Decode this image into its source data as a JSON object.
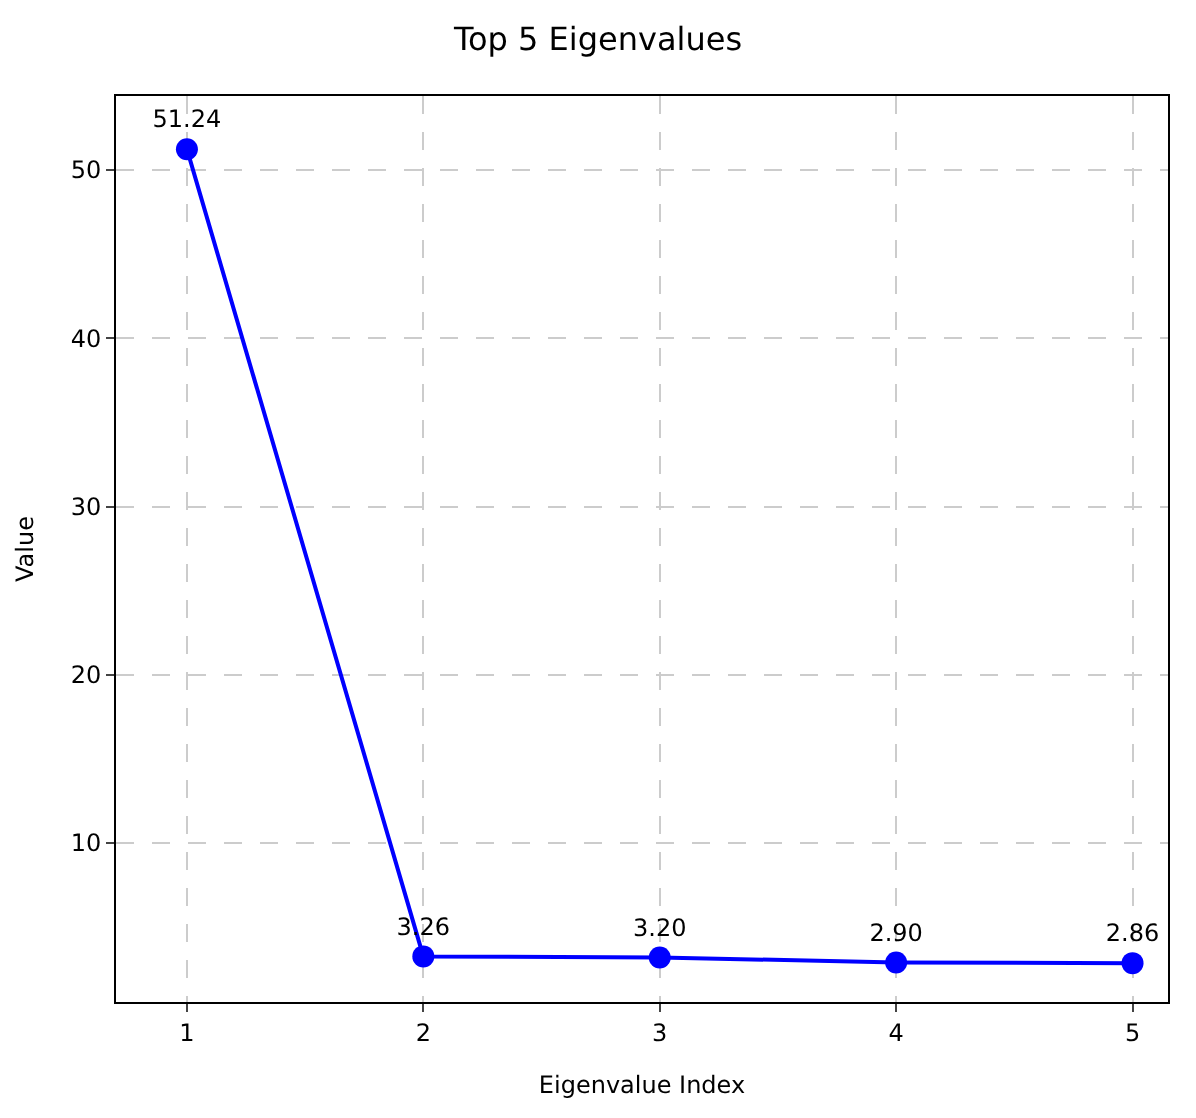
{
  "chart_data": {
    "type": "line",
    "title": "Top 5 Eigenvalues",
    "xlabel": "Eigenvalue Index",
    "ylabel": "Value",
    "x": [
      1,
      2,
      3,
      4,
      5
    ],
    "series": [
      {
        "color": "#0000ff",
        "values": [
          51.24,
          3.26,
          3.2,
          2.9,
          2.86
        ]
      }
    ],
    "value_labels": [
      "51.24",
      "3.26",
      "3.20",
      "2.90",
      "2.86"
    ],
    "xlim": [
      0.7,
      5.15
    ],
    "xticks": [
      1,
      2,
      3,
      4,
      5
    ],
    "ylim": [
      0.55,
      54.4
    ],
    "yticks": [
      10,
      20,
      30,
      40,
      50
    ],
    "grid": true,
    "marker": "circle",
    "line_style": "solid"
  }
}
